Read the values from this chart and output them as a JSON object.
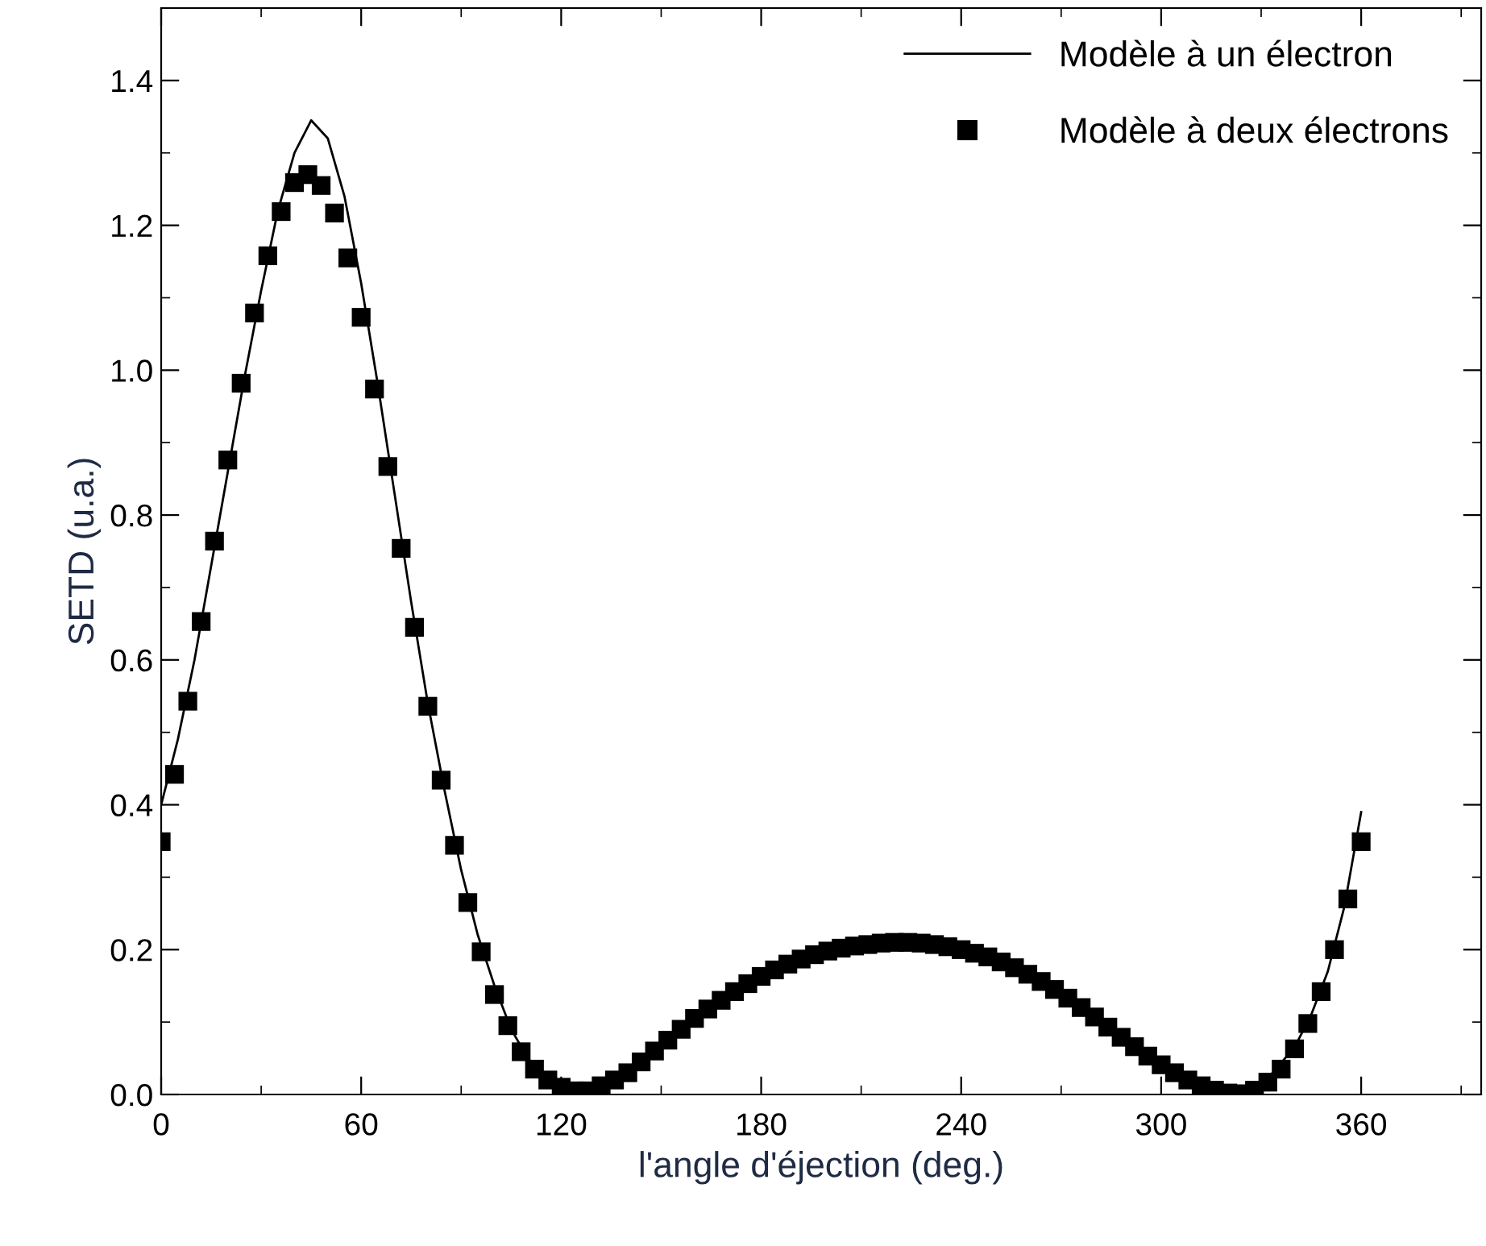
{
  "chart_data": {
    "type": "scatter",
    "xlabel": "l'angle d'éjection (deg.)",
    "ylabel": "SETD (u.a.)",
    "xlim": [
      0,
      396
    ],
    "ylim": [
      0,
      1.5
    ],
    "xticks": [
      0,
      {
        "value": 30,
        "label": null
      },
      60,
      {
        "value": 90,
        "label": null
      },
      120,
      {
        "value": 150,
        "label": null
      },
      180,
      {
        "value": 210,
        "label": null
      },
      240,
      {
        "value": 270,
        "label": null
      },
      300,
      {
        "value": 330,
        "label": null
      },
      360,
      {
        "value": 390,
        "label": null
      }
    ],
    "yticks": [
      {
        "value": 0,
        "label": "0.0"
      },
      {
        "value": 0.1,
        "label": null
      },
      0.2,
      {
        "value": 0.3,
        "label": null
      },
      0.4,
      {
        "value": 0.5,
        "label": null
      },
      0.6,
      {
        "value": 0.7,
        "label": null
      },
      0.8,
      {
        "value": 0.9,
        "label": null
      },
      {
        "value": 1.0,
        "label": "1.0"
      },
      {
        "value": 1.1,
        "label": null
      },
      1.2,
      {
        "value": 1.3,
        "label": null
      },
      1.4
    ],
    "grid": false,
    "legend": "top right",
    "series": [
      {
        "name": "Modèle à un électron",
        "type": "line",
        "color": "#000000",
        "marker": "none",
        "line_style": "solid",
        "x": [
          0,
          5,
          10,
          15,
          20,
          25,
          30,
          35,
          40,
          45,
          50,
          55,
          60,
          65,
          70,
          75,
          80,
          85,
          90,
          95,
          100,
          105,
          110,
          115,
          120,
          125,
          130,
          140,
          150,
          160,
          170,
          180,
          190,
          200,
          210,
          220,
          230,
          240,
          250,
          260,
          270,
          280,
          290,
          300,
          310,
          320,
          330,
          340,
          345,
          350,
          355,
          360
        ],
        "values": [
          0.4,
          0.49,
          0.6,
          0.73,
          0.86,
          0.99,
          1.11,
          1.22,
          1.3,
          1.345,
          1.32,
          1.24,
          1.12,
          0.98,
          0.83,
          0.68,
          0.54,
          0.42,
          0.31,
          0.22,
          0.15,
          0.09,
          0.05,
          0.025,
          0.01,
          0.005,
          0.008,
          0.03,
          0.068,
          0.105,
          0.136,
          0.163,
          0.184,
          0.198,
          0.206,
          0.21,
          0.208,
          0.2,
          0.187,
          0.166,
          0.139,
          0.107,
          0.072,
          0.04,
          0.015,
          0.002,
          0.012,
          0.065,
          0.11,
          0.17,
          0.26,
          0.39
        ]
      },
      {
        "name": "Modèle à deux électrons",
        "color": "#000000",
        "marker": "square",
        "x": [
          0,
          4,
          8,
          12,
          16,
          20,
          24,
          28,
          32,
          36,
          40,
          44,
          48,
          52,
          56,
          60,
          64,
          68,
          72,
          76,
          80,
          84,
          88,
          92,
          96,
          100,
          104,
          108,
          112,
          116,
          120,
          124,
          128,
          132,
          136,
          140,
          144,
          148,
          152,
          156,
          160,
          164,
          168,
          172,
          176,
          180,
          184,
          188,
          192,
          196,
          200,
          204,
          208,
          212,
          216,
          220,
          224,
          228,
          232,
          236,
          240,
          244,
          248,
          252,
          256,
          260,
          264,
          268,
          272,
          276,
          280,
          284,
          288,
          292,
          296,
          300,
          304,
          308,
          312,
          316,
          320,
          324,
          328,
          332,
          336,
          340,
          344,
          348,
          352,
          356,
          360
        ],
        "values": [
          0.349,
          0.442,
          0.543,
          0.653,
          0.764,
          0.876,
          0.982,
          1.079,
          1.158,
          1.219,
          1.259,
          1.27,
          1.255,
          1.217,
          1.155,
          1.073,
          0.974,
          0.867,
          0.754,
          0.645,
          0.536,
          0.434,
          0.344,
          0.265,
          0.197,
          0.138,
          0.095,
          0.059,
          0.035,
          0.02,
          0.01,
          0.005,
          0.005,
          0.012,
          0.02,
          0.03,
          0.045,
          0.06,
          0.075,
          0.09,
          0.105,
          0.118,
          0.13,
          0.142,
          0.153,
          0.163,
          0.172,
          0.18,
          0.187,
          0.193,
          0.198,
          0.202,
          0.205,
          0.207,
          0.209,
          0.21,
          0.21,
          0.209,
          0.207,
          0.204,
          0.2,
          0.195,
          0.19,
          0.183,
          0.175,
          0.166,
          0.156,
          0.145,
          0.133,
          0.12,
          0.107,
          0.093,
          0.079,
          0.066,
          0.053,
          0.041,
          0.03,
          0.02,
          0.012,
          0.006,
          0.002,
          0.001,
          0.006,
          0.017,
          0.035,
          0.063,
          0.098,
          0.142,
          0.2,
          0.27,
          0.349
        ]
      }
    ]
  }
}
